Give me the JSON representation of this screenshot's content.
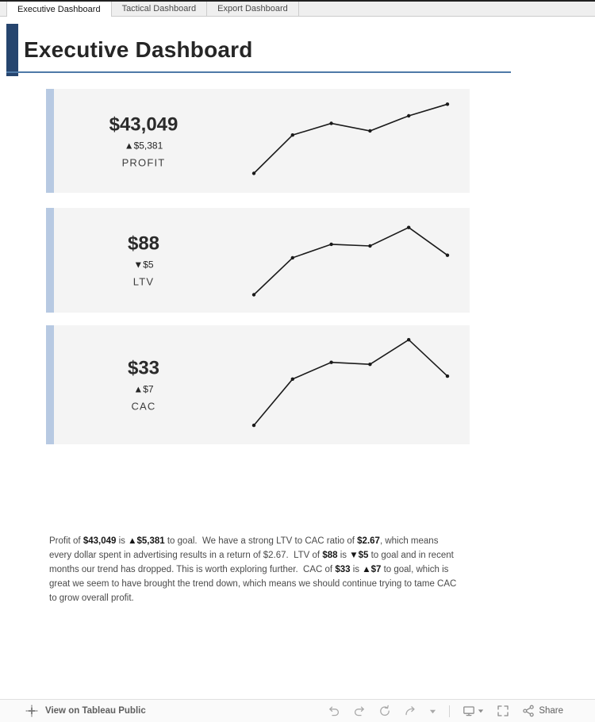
{
  "tabs": [
    {
      "label": "Executive Dashboard",
      "active": true
    },
    {
      "label": "Tactical Dashboard",
      "active": false
    },
    {
      "label": "Export Dashboard",
      "active": false
    }
  ],
  "header": {
    "title": "Executive Dashboard"
  },
  "kpis": [
    {
      "value": "$43,049",
      "delta": "▲$5,381",
      "label": "PROFIT",
      "spark": [
        10,
        56,
        70,
        61,
        79,
        93
      ]
    },
    {
      "value": "$88",
      "delta": "▼$5",
      "label": "LTV",
      "spark": [
        8,
        52,
        68,
        66,
        88,
        55
      ]
    },
    {
      "value": "$33",
      "delta": "▲$7",
      "label": "CAC",
      "spark": [
        8,
        55,
        72,
        70,
        95,
        58
      ]
    }
  ],
  "chart_data": [
    {
      "type": "line",
      "title": "PROFIT sparkline",
      "x": [
        1,
        2,
        3,
        4,
        5,
        6
      ],
      "values": [
        10,
        56,
        70,
        61,
        79,
        93
      ],
      "ylim": [
        0,
        100
      ],
      "grid": false,
      "legend": "none"
    },
    {
      "type": "line",
      "title": "LTV sparkline",
      "x": [
        1,
        2,
        3,
        4,
        5,
        6
      ],
      "values": [
        8,
        52,
        68,
        66,
        88,
        55
      ],
      "ylim": [
        0,
        100
      ],
      "grid": false,
      "legend": "none"
    },
    {
      "type": "line",
      "title": "CAC sparkline",
      "x": [
        1,
        2,
        3,
        4,
        5,
        6
      ],
      "values": [
        8,
        55,
        72,
        70,
        95,
        58
      ],
      "ylim": [
        0,
        100
      ],
      "grid": false,
      "legend": "none"
    }
  ],
  "summary": {
    "segments": [
      {
        "text": "Profit of ",
        "bold": false
      },
      {
        "text": "$43,049",
        "bold": true
      },
      {
        "text": " is ",
        "bold": false
      },
      {
        "text": "▲$5,381",
        "bold": true
      },
      {
        "text": " to goal.  We have a strong LTV to CAC ratio of ",
        "bold": false
      },
      {
        "text": "$2.67",
        "bold": true
      },
      {
        "text": ", which means every dollar spent in advertising results in a return of $2.67.  LTV of ",
        "bold": false
      },
      {
        "text": "$88",
        "bold": true
      },
      {
        "text": " is ",
        "bold": false
      },
      {
        "text": "▼$5",
        "bold": true
      },
      {
        "text": " to goal and in recent months our trend has dropped. This is worth exploring further.  CAC of ",
        "bold": false
      },
      {
        "text": "$33",
        "bold": true
      },
      {
        "text": " is ",
        "bold": false
      },
      {
        "text": "▲$7",
        "bold": true
      },
      {
        "text": " to goal, which is great we seem to have brought the trend down, which means we should continue trying to tame CAC to grow overall profit.",
        "bold": false
      }
    ]
  },
  "footer": {
    "view_label": "View on Tableau Public",
    "share_label": "Share"
  },
  "colors": {
    "accent_dark": "#26456e",
    "accent_light": "#b7c9e2",
    "underline": "#4e79a7",
    "card_bg": "#f4f4f4",
    "line": "#1a1a1a"
  }
}
